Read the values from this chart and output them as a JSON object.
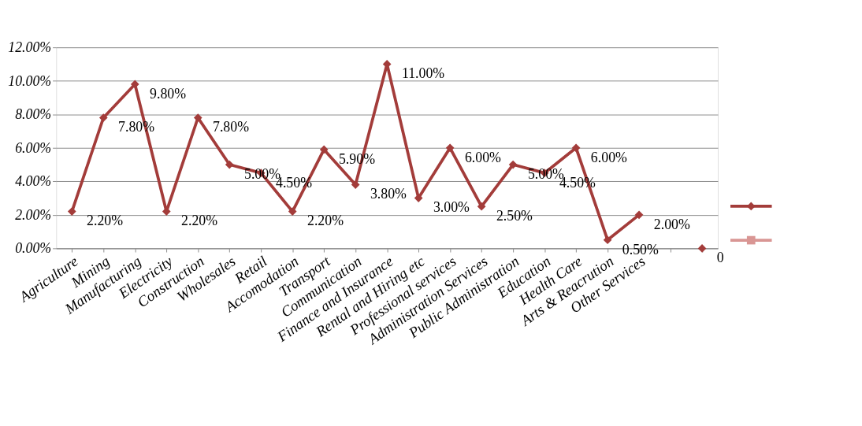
{
  "chart_data": {
    "type": "line",
    "categories": [
      "Agriculture",
      "Mining",
      "Manufacturing",
      "Electricity",
      "Construction",
      "Wholesales",
      "Retail",
      "Accomodation",
      "Transport",
      "Communication",
      "Finance and Insurance",
      "Rental and Hiring etc",
      "Professional services",
      "Administration Services",
      "Public Administration",
      "Education",
      "Health Care",
      "Arts & Reacrution",
      "Other Services",
      null,
      null
    ],
    "series": [
      {
        "color": "#a33c3a",
        "values": [
          2.2,
          7.8,
          9.8,
          2.2,
          7.8,
          5.0,
          4.5,
          2.2,
          5.9,
          3.8,
          11.0,
          3.0,
          6.0,
          2.5,
          5.0,
          4.5,
          6.0,
          0.5,
          2.0,
          null,
          0
        ],
        "marker": "diamond",
        "value_labels": [
          "2.20%",
          "7.80%",
          "9.80%",
          "2.20%",
          "7.80%",
          "5.00%",
          "4.50%",
          "2.20%",
          "5.90%",
          "3.80%",
          "11.00%",
          "3.00%",
          "6.00%",
          "2.50%",
          "5.00%",
          "4.50%",
          "6.00%",
          "0.50%",
          "2.00%",
          null,
          "0"
        ]
      },
      {
        "color": "#d99694",
        "values": [
          null,
          null,
          null,
          null,
          null,
          null,
          null,
          null,
          null,
          null,
          null,
          null,
          null,
          null,
          null,
          null,
          null,
          null,
          null,
          null,
          null
        ],
        "marker": "square"
      }
    ],
    "ylim": [
      0,
      12
    ],
    "yticks": [
      {
        "value": 0,
        "label": "0.00%"
      },
      {
        "value": 2,
        "label": "2.00%"
      },
      {
        "value": 4,
        "label": "4.00%"
      },
      {
        "value": 6,
        "label": "6.00%"
      },
      {
        "value": 8,
        "label": "8.00%"
      },
      {
        "value": 10,
        "label": "10.00%"
      },
      {
        "value": 12,
        "label": "12.00%"
      }
    ],
    "grid": "y",
    "line_style": "solid"
  }
}
